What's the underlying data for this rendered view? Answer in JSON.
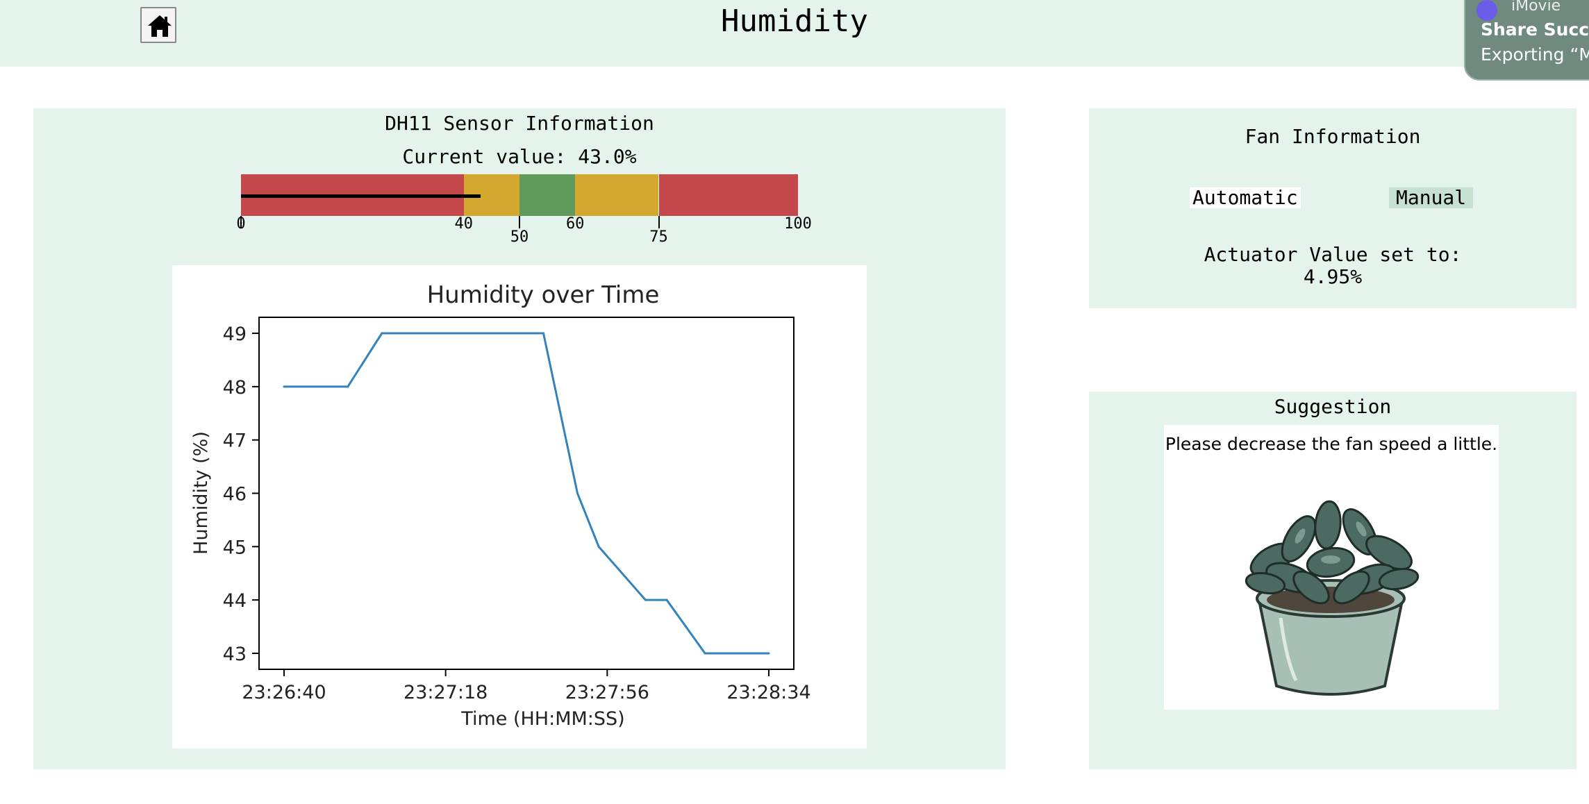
{
  "header": {
    "title": "Humidity",
    "home_icon": "home-icon"
  },
  "notification": {
    "app": "iMovie",
    "title": "Share Succe",
    "body": "Exporting “M"
  },
  "sensor": {
    "title": "DH11 Sensor Information",
    "current_label": "Current value:",
    "current_value": "43.0%",
    "gauge": {
      "min": 0,
      "max": 100,
      "value": 43.0,
      "zones": [
        {
          "from": 0,
          "to": 40,
          "color": "#c4484b"
        },
        {
          "from": 40,
          "to": 50,
          "color": "#d4a72f"
        },
        {
          "from": 50,
          "to": 60,
          "color": "#5f9a5a"
        },
        {
          "from": 60,
          "to": 75,
          "color": "#d4a72f"
        },
        {
          "from": 75,
          "to": 100,
          "color": "#c4484b"
        }
      ],
      "ticks": [
        "0",
        "40",
        "50",
        "60",
        "75",
        "100"
      ]
    }
  },
  "chart_data": {
    "type": "line",
    "title": "Humidity over Time",
    "xlabel": "Time (HH:MM:SS)",
    "ylabel": "Humidity (%)",
    "x_ticks": [
      "23:26:40",
      "23:27:18",
      "23:27:56",
      "23:28:34"
    ],
    "y_ticks": [
      "43",
      "44",
      "45",
      "46",
      "47",
      "48",
      "49"
    ],
    "ylim": [
      42.7,
      49.3
    ],
    "grid": false,
    "series": [
      {
        "color": "#3282bd",
        "x": [
          "23:26:40",
          "23:26:55",
          "23:27:03",
          "23:27:18",
          "23:27:41",
          "23:27:49",
          "23:27:54",
          "23:28:05",
          "23:28:10",
          "23:28:19",
          "23:28:34"
        ],
        "values": [
          48,
          48,
          49,
          49,
          49,
          46,
          45,
          44,
          44,
          43,
          43
        ]
      }
    ]
  },
  "fan": {
    "title": "Fan Information",
    "automatic_label": "Automatic",
    "manual_label": "Manual",
    "actuator_label": "Actuator Value set to:",
    "actuator_value": "4.95%"
  },
  "suggestion": {
    "title": "Suggestion",
    "text": "Please decrease the fan speed a little.",
    "image_icon": "potted-plant-icon"
  }
}
